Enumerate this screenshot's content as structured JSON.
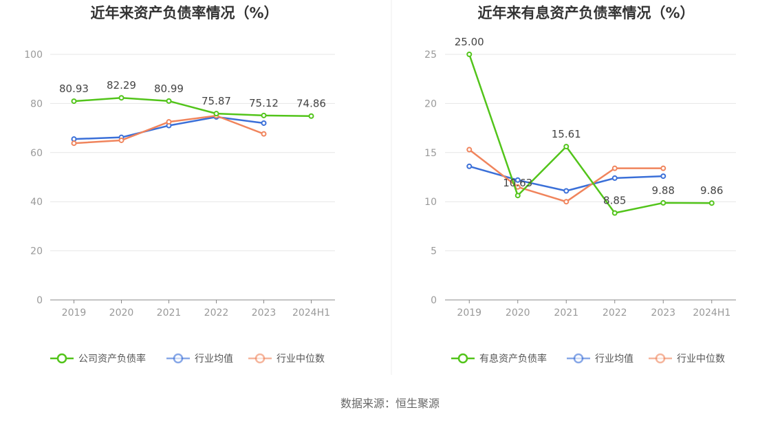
{
  "source_label": "数据来源：恒生聚源",
  "chart_data": [
    {
      "type": "line",
      "title": "近年来资产负债率情况（%）",
      "categories": [
        "2019",
        "2020",
        "2021",
        "2022",
        "2023",
        "2024H1"
      ],
      "ylim": [
        0,
        100
      ],
      "yticks": [
        0,
        20,
        40,
        60,
        80,
        100
      ],
      "grid": true,
      "legend_position": "bottom",
      "series": [
        {
          "name": "公司资产负债率",
          "color": "#52c41a",
          "values": [
            80.93,
            82.29,
            80.99,
            75.87,
            75.12,
            74.86
          ],
          "labels": [
            "80.93",
            "82.29",
            "80.99",
            "75.87",
            "75.12",
            "74.86"
          ]
        },
        {
          "name": "行业均值",
          "color": "#3a6fd8",
          "values": [
            65.5,
            66.2,
            71.0,
            74.5,
            72.0,
            null
          ]
        },
        {
          "name": "行业中位数",
          "color": "#f0845c",
          "values": [
            63.8,
            65.0,
            72.5,
            75.0,
            67.6,
            null
          ]
        }
      ]
    },
    {
      "type": "line",
      "title": "近年来有息资产负债率情况（%）",
      "categories": [
        "2019",
        "2020",
        "2021",
        "2022",
        "2023",
        "2024H1"
      ],
      "ylim": [
        0,
        25
      ],
      "yticks": [
        0,
        5,
        10,
        15,
        20,
        25
      ],
      "grid": true,
      "legend_position": "bottom",
      "series": [
        {
          "name": "有息资产负债率",
          "color": "#52c41a",
          "values": [
            25.0,
            10.63,
            15.61,
            8.85,
            9.88,
            9.86
          ],
          "labels": [
            "25.00",
            "10.63",
            "15.61",
            "8.85",
            "9.88",
            "9.86"
          ]
        },
        {
          "name": "行业均值",
          "color": "#3a6fd8",
          "values": [
            13.6,
            12.2,
            11.1,
            12.4,
            12.6,
            null
          ]
        },
        {
          "name": "行业中位数",
          "color": "#f0845c",
          "values": [
            15.3,
            11.5,
            10.0,
            13.4,
            13.4,
            null
          ]
        }
      ]
    }
  ]
}
